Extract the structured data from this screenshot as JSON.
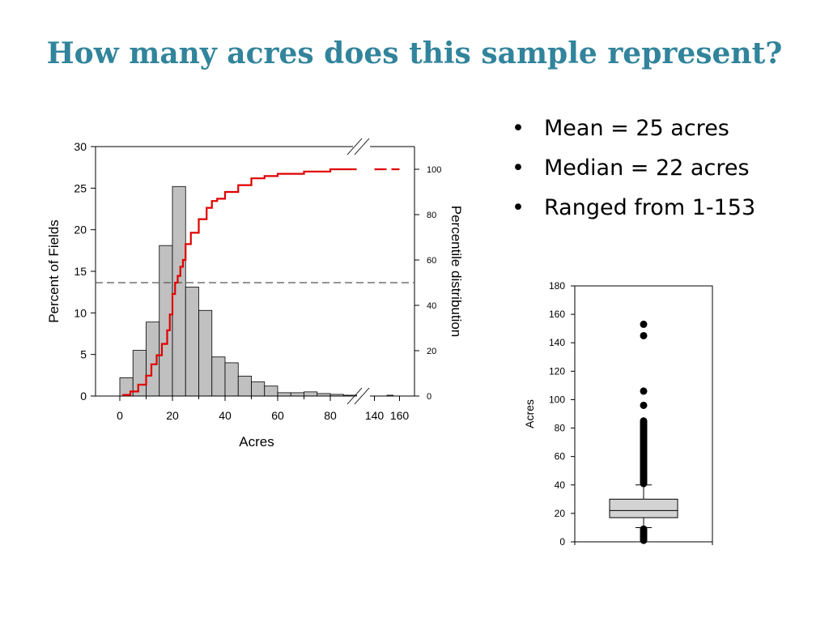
{
  "slide": {
    "title": "How many acres does this sample represent?",
    "bullets": [
      "Mean = 25 acres",
      "Median = 22 acres",
      "Ranged from 1-153"
    ]
  },
  "colors": {
    "title": "#31849b",
    "bar_fill": "#c0c0c0",
    "cdf_line": "#e00000",
    "box_fill": "#d3d3d3"
  },
  "chart_data": [
    {
      "type": "bar",
      "subtype": "histogram with cumulative percentile line (broken x-axis)",
      "xlabel": "Acres",
      "ylabel": "Percent of Fields",
      "y2label": "Percentile distribution",
      "ylim": [
        0,
        30
      ],
      "y2lim": [
        0,
        110
      ],
      "ytick_labels": [
        "0",
        "5",
        "10",
        "15",
        "20",
        "25",
        "30"
      ],
      "y2tick_labels": [
        "0",
        "20",
        "40",
        "60",
        "80",
        "100"
      ],
      "xtick_labels": [
        "0",
        "20",
        "40",
        "60",
        "80",
        "140",
        "160"
      ],
      "x_axis_break": [
        90,
        130
      ],
      "bin_width": 5,
      "bins": [
        {
          "start": 0,
          "value": 2.2
        },
        {
          "start": 5,
          "value": 5.5
        },
        {
          "start": 10,
          "value": 8.9
        },
        {
          "start": 15,
          "value": 18.1
        },
        {
          "start": 20,
          "value": 25.2
        },
        {
          "start": 25,
          "value": 13.1
        },
        {
          "start": 30,
          "value": 10.3
        },
        {
          "start": 35,
          "value": 4.7
        },
        {
          "start": 40,
          "value": 4.0
        },
        {
          "start": 45,
          "value": 2.4
        },
        {
          "start": 50,
          "value": 1.7
        },
        {
          "start": 55,
          "value": 1.2
        },
        {
          "start": 60,
          "value": 0.4
        },
        {
          "start": 65,
          "value": 0.4
        },
        {
          "start": 70,
          "value": 0.5
        },
        {
          "start": 75,
          "value": 0.3
        },
        {
          "start": 80,
          "value": 0.2
        },
        {
          "start": 85,
          "value": 0.1
        },
        {
          "start": 150,
          "value": 0.1
        }
      ],
      "reference_line": {
        "style": "dashed",
        "y2": 50
      },
      "cumulative_series": {
        "name": "",
        "x": [
          1,
          4,
          7,
          10,
          12,
          14,
          16,
          18,
          19,
          20,
          21,
          22,
          23,
          24,
          25,
          27,
          30,
          33,
          35,
          37,
          40,
          45,
          50,
          55,
          60,
          70,
          80,
          90
        ],
        "y": [
          0.5,
          2,
          5,
          9,
          14,
          18,
          23,
          29,
          36,
          45,
          50,
          53,
          57,
          60,
          67,
          72,
          78,
          83,
          86,
          87,
          90,
          93,
          96,
          97,
          98,
          99,
          100,
          100
        ],
        "extension": {
          "x": [
            140,
            160
          ],
          "y": [
            100,
            100
          ],
          "style": "dashed"
        }
      }
    },
    {
      "type": "box",
      "ylabel": "Acres",
      "ylim": [
        0,
        180
      ],
      "ytick_labels": [
        "0",
        "20",
        "40",
        "60",
        "80",
        "100",
        "120",
        "140",
        "160",
        "180"
      ],
      "whisker_low": 10,
      "q1": 17,
      "median": 22,
      "q3": 30,
      "whisker_high": 40,
      "outliers": [
        1,
        2,
        3,
        4,
        5,
        6,
        7,
        8,
        9,
        41,
        42,
        43,
        44,
        45,
        46,
        47,
        48,
        49,
        50,
        51,
        52,
        53,
        54,
        55,
        56,
        57,
        58,
        59,
        60,
        61,
        62,
        63,
        64,
        65,
        66,
        67,
        68,
        69,
        70,
        71,
        72,
        73,
        74,
        75,
        76,
        77,
        78,
        79,
        80,
        81,
        82,
        83,
        84,
        85,
        96,
        106,
        145,
        153
      ]
    }
  ]
}
